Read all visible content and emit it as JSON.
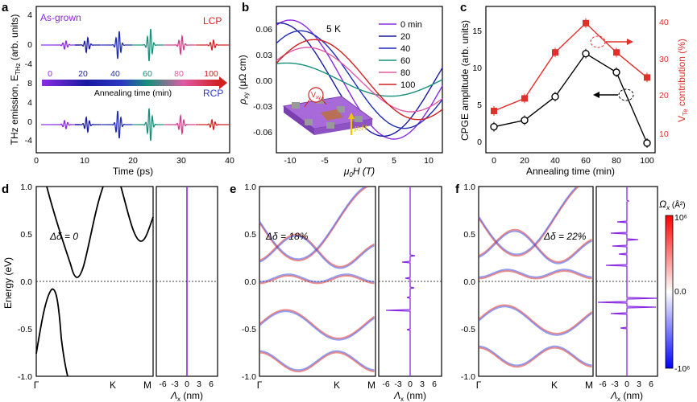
{
  "panels": {
    "a": {
      "letter": "a",
      "label_asgrown": "As-grown",
      "label_lcp": "LCP",
      "label_rcp": "RCP",
      "ylabel": "THz emission, E",
      "ylabel_sub": "THz",
      "ylabel_tail": " (arb. units)",
      "xlabel": "Time (ps)",
      "xticks": [
        "0",
        "10",
        "20",
        "30",
        "40"
      ],
      "yticks_top": [
        "4",
        "0",
        "-4"
      ],
      "yticks_bot": [
        "8",
        "4",
        "0",
        "-4"
      ],
      "anneal_label": "Annealing time (min)",
      "anneal_ticks": [
        "0",
        "20",
        "40",
        "60",
        "80",
        "100"
      ],
      "anneal_colors": [
        "#8a2be2",
        "#1a1aa0",
        "#1f2cb8",
        "#17907a",
        "#d0408a",
        "#d02020"
      ]
    },
    "b": {
      "letter": "b",
      "temp": "5 K",
      "ylabel": "ρ",
      "ylabel_sub": "xy",
      "ylabel_tail": " (μΩ cm)",
      "xlabel": "μ",
      "xlabel_sub": "0",
      "xlabel_tail": "H (T)",
      "xticks": [
        "-10",
        "-5",
        "0",
        "5",
        "10"
      ],
      "yticks": [
        "0.06",
        "0.03",
        "0.00",
        "-0.03",
        "-0.06"
      ],
      "legend": [
        {
          "label": "0 min",
          "color": "#8a2be2"
        },
        {
          "label": "20",
          "color": "#1a1aa0"
        },
        {
          "label": "40",
          "color": "#1f2cb8"
        },
        {
          "label": "60",
          "color": "#17907a"
        },
        {
          "label": "80",
          "color": "#e05aa5"
        },
        {
          "label": "100",
          "color": "#d02020"
        }
      ],
      "inset_vxy": "V",
      "inset_vxy_sub": "xy",
      "inset_field": "μ₀H"
    },
    "c": {
      "letter": "c",
      "ylabel_left": "CPGE amplitude (arb. units)",
      "ylabel_right": "V",
      "ylabel_right_sub": "Te",
      "ylabel_right_tail": " contribution (%)",
      "xlabel": "Annealing time (min)",
      "xticks": [
        "0",
        "20",
        "40",
        "60",
        "80",
        "100"
      ],
      "yticks_left": [
        "0",
        "5",
        "10",
        "15"
      ],
      "yticks_right": [
        "10",
        "20",
        "30",
        "40"
      ],
      "left_color": "#000000",
      "right_color": "#e0302a"
    },
    "d": {
      "letter": "d",
      "delta": "Δδ = 0",
      "ylabel": "Energy (eV)",
      "yticks": [
        "1.0",
        "0.5",
        "0.0",
        "-0.5",
        "-1.0"
      ],
      "kpoints": [
        "Γ",
        "K",
        "M"
      ],
      "side_xlabel": "Λ",
      "side_xticks": [
        "-6",
        "-3",
        "0",
        "3",
        "6"
      ],
      "side_unit": " (nm)"
    },
    "e": {
      "letter": "e",
      "delta": "Δδ = 18%",
      "yticks": [
        "1.0",
        "0.5",
        "0.0",
        "-0.5",
        "-1.0"
      ],
      "kpoints": [
        "Γ",
        "K",
        "M"
      ],
      "side_xticks": [
        "-6",
        "-3",
        "0",
        "3",
        "6"
      ],
      "side_unit": " (nm)"
    },
    "f": {
      "letter": "f",
      "delta": "Δδ = 22%",
      "yticks": [
        "1.0",
        "0.5",
        "0.0",
        "-0.5",
        "-1.0"
      ],
      "kpoints": [
        "Γ",
        "K",
        "M"
      ],
      "side_xticks": [
        "-6",
        "-3",
        "0",
        "3",
        "6"
      ],
      "side_unit": " (nm)",
      "cbar_title": "Ω",
      "cbar_title_sub": "x",
      "cbar_unit": " (Å²)",
      "cbar_max": "10⁶",
      "cbar_mid": "0.0",
      "cbar_min": "-10⁶"
    }
  },
  "chart_data": [
    {
      "type": "line",
      "title": "",
      "xlabel": "Time (ps)",
      "ylabel": "THz emission, E_THz (arb. units)",
      "xlim": [
        0,
        40
      ],
      "series": [
        {
          "name": "0",
          "x_peak": 6
        },
        {
          "name": "20",
          "x_peak": 10.5
        },
        {
          "name": "40",
          "x_peak": 17
        },
        {
          "name": "60",
          "x_peak": 23.5
        },
        {
          "name": "80",
          "x_peak": 30
        },
        {
          "name": "100",
          "x_peak": 36.5
        }
      ]
    },
    {
      "type": "line",
      "xlabel": "μ0H (T)",
      "ylabel": "ρxy (μΩ cm)",
      "xlim": [
        -12,
        12
      ],
      "ylim": [
        -0.075,
        0.075
      ],
      "series": [
        {
          "name": "0 min",
          "amp": 0.061,
          "peak": -8.5
        },
        {
          "name": "20",
          "amp": 0.058,
          "peak": -10
        },
        {
          "name": "40",
          "amp": 0.05,
          "peak": -7
        },
        {
          "name": "60",
          "amp": 0.017,
          "peak": -9
        },
        {
          "name": "80",
          "amp": 0.033,
          "peak": -6
        },
        {
          "name": "100",
          "amp": 0.041,
          "peak": -5
        }
      ]
    },
    {
      "type": "line",
      "xlabel": "Annealing time (min)",
      "ylabel": "CPGE amplitude (arb. units)",
      "x": [
        0,
        20,
        40,
        60,
        80,
        100
      ],
      "series": [
        {
          "name": "CPGE amplitude",
          "values": [
            3.2,
            4.0,
            6.9,
            12.2,
            9.9,
            1.2
          ],
          "ylim": [
            0,
            18
          ]
        },
        {
          "name": "VTe contribution",
          "values": [
            17,
            20,
            31,
            38,
            31,
            25
          ],
          "ylim": [
            7,
            42
          ]
        }
      ]
    }
  ]
}
